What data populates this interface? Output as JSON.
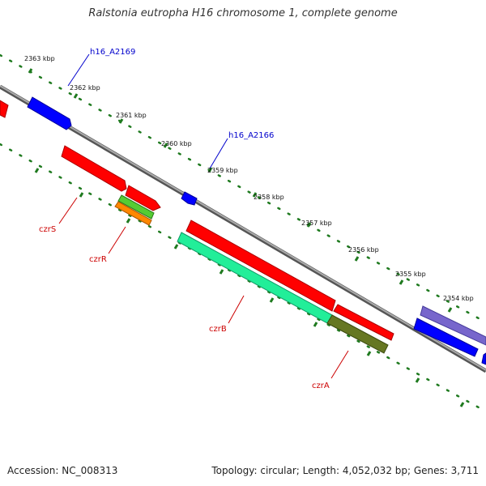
{
  "title": "Ralstonia eutropha H16 chromosome 1, complete genome",
  "footer": {
    "accession": "Accession: NC_008313",
    "summary": "Topology: circular; Length: 4,052,032 bp; Genes: 3,711"
  },
  "colors": {
    "backbone": "#888888",
    "tick": "#1f7a1f",
    "kbp_text": "#111111",
    "locus_tag": "#0000cc",
    "gene_name": "#cc0000",
    "forward_cds": "#ff0000",
    "reverse_cds": "#0000ff",
    "czrR_gene": "#55cc33",
    "czrR_cds": "#ff8800",
    "czrB_gene": "#22ee99",
    "czrA_gene": "#667722",
    "far_gene": "#7766cc"
  },
  "scale": {
    "tick_labels": [
      "2363 kbp",
      "2362 kbp",
      "2361 kbp",
      "2360 kbp",
      "2359 kbp",
      "2358 kbp",
      "2357 kbp",
      "2356 kbp",
      "2355 kbp",
      "2354 kbp"
    ]
  },
  "locus_tags": [
    "h16_A2169",
    "h16_A2166"
  ],
  "gene_labels": [
    "czrS",
    "czrR",
    "czrB",
    "czrA"
  ]
}
